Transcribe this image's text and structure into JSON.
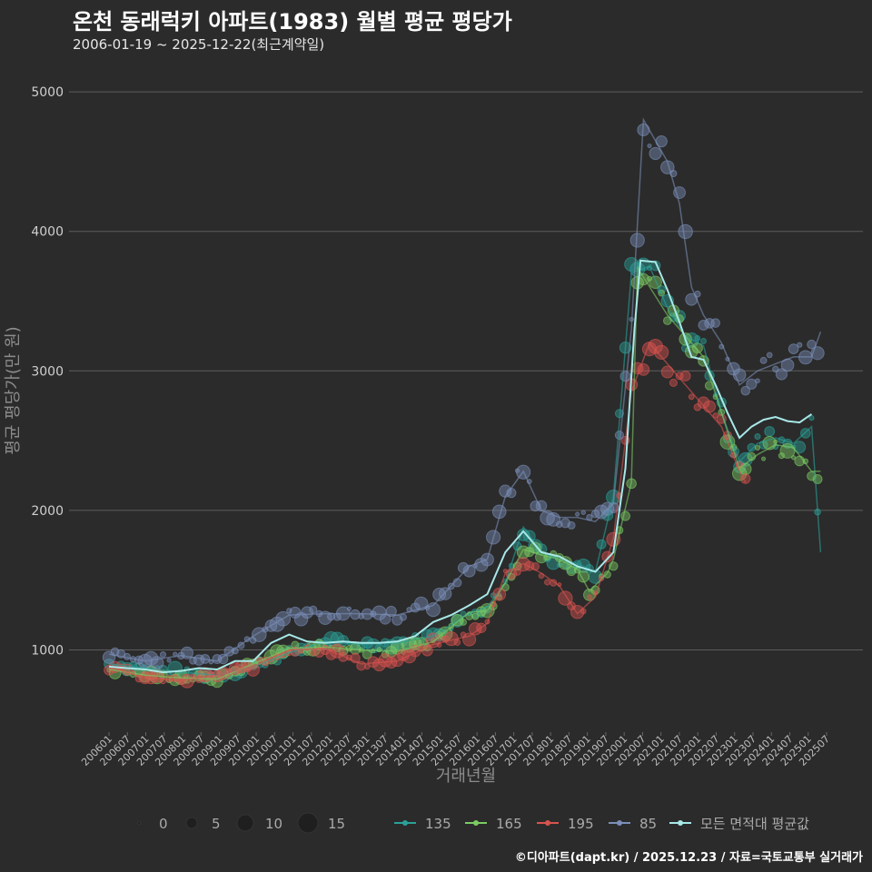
{
  "title": "온천 동래럭키 아파트(1983) 월별 평균 평당가",
  "subtitle": "2006-01-19 ~ 2025-12-22(최근계약일)",
  "caption": "©디아파트(dapt.kr) / 2025.12.23 / 자료=국토교통부 실거래가",
  "colors": {
    "s135": "#2aa198",
    "s165": "#7ccc63",
    "s195": "#d9534f",
    "s85": "#7b8fb9",
    "avg": "#a8e8e8"
  },
  "chart_data": {
    "type": "line",
    "title": "온천 동래럭키 아파트(1983) 월별 평균 평당가",
    "xlabel": "거래년월",
    "ylabel": "평균 평당가(만 원)",
    "ylim": [
      450,
      5300
    ],
    "yticks": [
      1000,
      2000,
      3000,
      4000,
      5000
    ],
    "x_tick_labels": [
      "200601",
      "200607",
      "200701",
      "200707",
      "200801",
      "200807",
      "200901",
      "200907",
      "201001",
      "201007",
      "201101",
      "201107",
      "201201",
      "201207",
      "201301",
      "201307",
      "201401",
      "201407",
      "201501",
      "201507",
      "201601",
      "201607",
      "201701",
      "201707",
      "201801",
      "201807",
      "201901",
      "201907",
      "202001",
      "202007",
      "202101",
      "202107",
      "202201",
      "202207",
      "202301",
      "202307",
      "202401",
      "202407",
      "202501",
      "202507"
    ],
    "x_range_months": [
      0,
      239
    ],
    "size_legend": {
      "values": [
        0,
        5,
        10,
        15
      ],
      "labels": [
        "0",
        "5",
        "10",
        "15"
      ]
    },
    "series": [
      {
        "name": "135",
        "color_key": "s135",
        "points": [
          [
            0,
            900
          ],
          [
            12,
            870
          ],
          [
            24,
            840
          ],
          [
            36,
            820
          ],
          [
            48,
            880
          ],
          [
            60,
            980
          ],
          [
            72,
            1060
          ],
          [
            84,
            1040
          ],
          [
            96,
            1050
          ],
          [
            108,
            1100
          ],
          [
            120,
            1260
          ],
          [
            126,
            1310
          ],
          [
            132,
            1480
          ],
          [
            138,
            1880
          ],
          [
            144,
            1700
          ],
          [
            150,
            1650
          ],
          [
            156,
            1620
          ],
          [
            162,
            1560
          ],
          [
            168,
            2100
          ],
          [
            174,
            3700
          ],
          [
            180,
            3750
          ],
          [
            186,
            3450
          ],
          [
            192,
            3250
          ],
          [
            198,
            3180
          ],
          [
            204,
            2700
          ],
          [
            210,
            2350
          ],
          [
            216,
            2480
          ],
          [
            222,
            2520
          ],
          [
            228,
            2480
          ],
          [
            234,
            2600
          ],
          [
            237,
            1700
          ]
        ]
      },
      {
        "name": "165",
        "color_key": "s165",
        "points": [
          [
            0,
            860
          ],
          [
            12,
            820
          ],
          [
            24,
            800
          ],
          [
            36,
            790
          ],
          [
            48,
            900
          ],
          [
            60,
            1010
          ],
          [
            72,
            1020
          ],
          [
            84,
            1000
          ],
          [
            96,
            990
          ],
          [
            108,
            1060
          ],
          [
            120,
            1270
          ],
          [
            126,
            1280
          ],
          [
            132,
            1480
          ],
          [
            138,
            1720
          ],
          [
            144,
            1680
          ],
          [
            150,
            1650
          ],
          [
            156,
            1580
          ],
          [
            160,
            1420
          ],
          [
            166,
            1550
          ],
          [
            168,
            1650
          ],
          [
            174,
            2200
          ],
          [
            176,
            3740
          ],
          [
            186,
            3400
          ],
          [
            192,
            3250
          ],
          [
            198,
            3100
          ],
          [
            204,
            2700
          ],
          [
            210,
            2300
          ],
          [
            216,
            2400
          ],
          [
            222,
            2470
          ],
          [
            228,
            2450
          ],
          [
            234,
            2280
          ],
          [
            237,
            2280
          ]
        ]
      },
      {
        "name": "195",
        "color_key": "s195",
        "points": [
          [
            0,
            880
          ],
          [
            12,
            800
          ],
          [
            24,
            780
          ],
          [
            36,
            820
          ],
          [
            48,
            880
          ],
          [
            60,
            1000
          ],
          [
            72,
            1010
          ],
          [
            84,
            900
          ],
          [
            96,
            920
          ],
          [
            108,
            1040
          ],
          [
            120,
            1100
          ],
          [
            126,
            1190
          ],
          [
            132,
            1550
          ],
          [
            138,
            1620
          ],
          [
            144,
            1550
          ],
          [
            150,
            1460
          ],
          [
            156,
            1260
          ],
          [
            162,
            1380
          ],
          [
            168,
            1800
          ],
          [
            174,
            2850
          ],
          [
            180,
            3200
          ],
          [
            186,
            3050
          ],
          [
            192,
            2900
          ],
          [
            198,
            2750
          ],
          [
            204,
            2600
          ],
          [
            210,
            2280
          ],
          [
            212,
            2200
          ]
        ]
      },
      {
        "name": "85",
        "color_key": "s85",
        "points": [
          [
            0,
            970
          ],
          [
            12,
            920
          ],
          [
            24,
            960
          ],
          [
            36,
            920
          ],
          [
            48,
            1100
          ],
          [
            60,
            1250
          ],
          [
            72,
            1260
          ],
          [
            84,
            1260
          ],
          [
            96,
            1250
          ],
          [
            108,
            1320
          ],
          [
            120,
            1600
          ],
          [
            126,
            1650
          ],
          [
            132,
            2100
          ],
          [
            138,
            2280
          ],
          [
            144,
            2000
          ],
          [
            150,
            1950
          ],
          [
            156,
            1950
          ],
          [
            162,
            1920
          ],
          [
            168,
            2050
          ],
          [
            174,
            3300
          ],
          [
            178,
            4800
          ],
          [
            186,
            4500
          ],
          [
            190,
            4200
          ],
          [
            194,
            3600
          ],
          [
            198,
            3400
          ],
          [
            204,
            3200
          ],
          [
            210,
            2900
          ],
          [
            216,
            3000
          ],
          [
            222,
            3050
          ],
          [
            228,
            3100
          ],
          [
            234,
            3100
          ],
          [
            237,
            3280
          ]
        ]
      },
      {
        "name": "모든 면적대 평균값",
        "color_key": "avg",
        "points": [
          [
            0,
            880
          ],
          [
            6,
            870
          ],
          [
            12,
            860
          ],
          [
            18,
            840
          ],
          [
            24,
            850
          ],
          [
            30,
            870
          ],
          [
            36,
            860
          ],
          [
            42,
            920
          ],
          [
            48,
            920
          ],
          [
            54,
            1050
          ],
          [
            60,
            1110
          ],
          [
            66,
            1060
          ],
          [
            72,
            1050
          ],
          [
            78,
            1060
          ],
          [
            84,
            1050
          ],
          [
            90,
            1050
          ],
          [
            96,
            1060
          ],
          [
            102,
            1100
          ],
          [
            108,
            1200
          ],
          [
            114,
            1250
          ],
          [
            120,
            1320
          ],
          [
            126,
            1400
          ],
          [
            132,
            1700
          ],
          [
            138,
            1850
          ],
          [
            144,
            1700
          ],
          [
            150,
            1670
          ],
          [
            156,
            1600
          ],
          [
            162,
            1560
          ],
          [
            168,
            1700
          ],
          [
            172,
            2300
          ],
          [
            175,
            3300
          ],
          [
            177,
            3790
          ],
          [
            182,
            3780
          ],
          [
            186,
            3580
          ],
          [
            190,
            3350
          ],
          [
            194,
            3100
          ],
          [
            198,
            3080
          ],
          [
            202,
            2900
          ],
          [
            206,
            2700
          ],
          [
            210,
            2520
          ],
          [
            214,
            2600
          ],
          [
            218,
            2650
          ],
          [
            222,
            2670
          ],
          [
            226,
            2640
          ],
          [
            230,
            2630
          ],
          [
            234,
            2690
          ]
        ]
      }
    ]
  }
}
